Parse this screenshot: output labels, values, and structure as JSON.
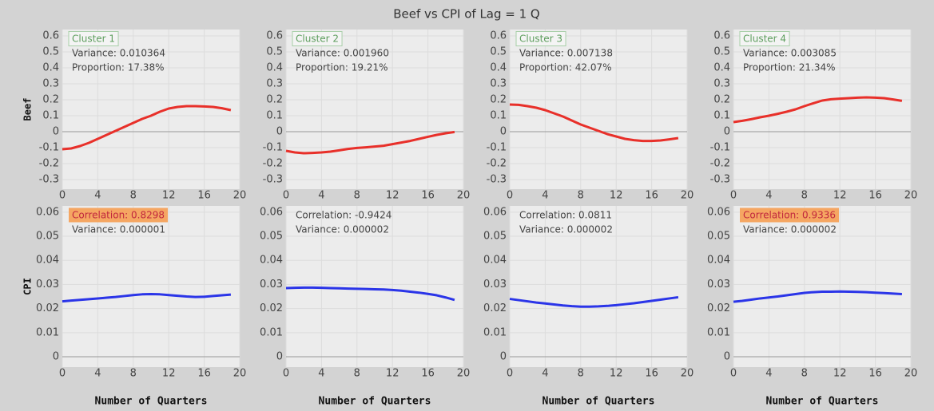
{
  "title": "Beef vs CPI of Lag = 1 Q",
  "chart_data": [
    {
      "type": "line",
      "ylabel": "Beef",
      "x": [
        0,
        1,
        2,
        3,
        4,
        5,
        6,
        7,
        8,
        9,
        10,
        11,
        12,
        13,
        14,
        15,
        16,
        17,
        18,
        19
      ],
      "xlim": [
        0,
        20
      ],
      "xticks": [
        0,
        4,
        8,
        12,
        16,
        20
      ],
      "ylim": [
        -0.36,
        0.64
      ],
      "yticks": [
        -0.3,
        -0.2,
        -0.1,
        0,
        0.1,
        0.2,
        0.3,
        0.4,
        0.5,
        0.6
      ],
      "grid": true,
      "annotations": [
        {
          "text": "Cluster 1",
          "boxed": true
        },
        {
          "text": "Variance: 0.010364"
        },
        {
          "text": "Proportion: 17.38%"
        }
      ],
      "series": [
        {
          "color": "#e8302a",
          "values": [
            -0.11,
            -0.105,
            -0.09,
            -0.07,
            -0.045,
            -0.02,
            0.005,
            0.03,
            0.055,
            0.08,
            0.1,
            0.125,
            0.145,
            0.155,
            0.16,
            0.16,
            0.158,
            0.155,
            0.147,
            0.135
          ]
        }
      ]
    },
    {
      "type": "line",
      "x": [
        0,
        1,
        2,
        3,
        4,
        5,
        6,
        7,
        8,
        9,
        10,
        11,
        12,
        13,
        14,
        15,
        16,
        17,
        18,
        19
      ],
      "xlim": [
        0,
        20
      ],
      "xticks": [
        0,
        4,
        8,
        12,
        16,
        20
      ],
      "ylim": [
        -0.36,
        0.64
      ],
      "yticks": [
        -0.3,
        -0.2,
        -0.1,
        0,
        0.1,
        0.2,
        0.3,
        0.4,
        0.5,
        0.6
      ],
      "grid": true,
      "annotations": [
        {
          "text": "Cluster 2",
          "boxed": true
        },
        {
          "text": "Variance: 0.001960"
        },
        {
          "text": "Proportion: 19.21%"
        }
      ],
      "series": [
        {
          "color": "#e8302a",
          "values": [
            -0.12,
            -0.13,
            -0.135,
            -0.133,
            -0.13,
            -0.125,
            -0.117,
            -0.108,
            -0.102,
            -0.098,
            -0.093,
            -0.088,
            -0.078,
            -0.068,
            -0.058,
            -0.045,
            -0.032,
            -0.02,
            -0.01,
            -0.002
          ]
        }
      ]
    },
    {
      "type": "line",
      "x": [
        0,
        1,
        2,
        3,
        4,
        5,
        6,
        7,
        8,
        9,
        10,
        11,
        12,
        13,
        14,
        15,
        16,
        17,
        18,
        19
      ],
      "xlim": [
        0,
        20
      ],
      "xticks": [
        0,
        4,
        8,
        12,
        16,
        20
      ],
      "ylim": [
        -0.36,
        0.64
      ],
      "yticks": [
        -0.3,
        -0.2,
        -0.1,
        0,
        0.1,
        0.2,
        0.3,
        0.4,
        0.5,
        0.6
      ],
      "grid": true,
      "annotations": [
        {
          "text": "Cluster 3",
          "boxed": true
        },
        {
          "text": "Variance: 0.007138"
        },
        {
          "text": "Proportion: 42.07%"
        }
      ],
      "series": [
        {
          "color": "#e8302a",
          "values": [
            0.17,
            0.168,
            0.16,
            0.15,
            0.135,
            0.115,
            0.095,
            0.07,
            0.045,
            0.025,
            0.005,
            -0.015,
            -0.03,
            -0.045,
            -0.053,
            -0.058,
            -0.058,
            -0.055,
            -0.048,
            -0.04
          ]
        }
      ]
    },
    {
      "type": "line",
      "x": [
        0,
        1,
        2,
        3,
        4,
        5,
        6,
        7,
        8,
        9,
        10,
        11,
        12,
        13,
        14,
        15,
        16,
        17,
        18,
        19
      ],
      "xlim": [
        0,
        20
      ],
      "xticks": [
        0,
        4,
        8,
        12,
        16,
        20
      ],
      "ylim": [
        -0.36,
        0.64
      ],
      "yticks": [
        -0.3,
        -0.2,
        -0.1,
        0,
        0.1,
        0.2,
        0.3,
        0.4,
        0.5,
        0.6
      ],
      "grid": true,
      "annotations": [
        {
          "text": "Cluster 4",
          "boxed": true
        },
        {
          "text": "Variance: 0.003085"
        },
        {
          "text": "Proportion: 21.34%"
        }
      ],
      "series": [
        {
          "color": "#e8302a",
          "values": [
            0.06,
            0.068,
            0.078,
            0.09,
            0.1,
            0.112,
            0.125,
            0.14,
            0.16,
            0.178,
            0.195,
            0.203,
            0.207,
            0.21,
            0.213,
            0.215,
            0.213,
            0.21,
            0.202,
            0.193
          ]
        }
      ]
    },
    {
      "type": "line",
      "ylabel": "CPI",
      "xlabel": "Number of Quarters",
      "x": [
        0,
        1,
        2,
        3,
        4,
        5,
        6,
        7,
        8,
        9,
        10,
        11,
        12,
        13,
        14,
        15,
        16,
        17,
        18,
        19
      ],
      "xlim": [
        0,
        20
      ],
      "xticks": [
        0,
        4,
        8,
        12,
        16,
        20
      ],
      "ylim": [
        -0.0043,
        0.0626
      ],
      "yticks": [
        0,
        0.01,
        0.02,
        0.03,
        0.04,
        0.05,
        0.06
      ],
      "grid": true,
      "annotations": [
        {
          "text": "Correlation: 0.8298",
          "highlight": true
        },
        {
          "text": "Variance: 0.000001"
        }
      ],
      "series": [
        {
          "color": "#2b35e8",
          "values": [
            0.023,
            0.0233,
            0.0236,
            0.0239,
            0.0242,
            0.0245,
            0.0248,
            0.0252,
            0.0256,
            0.0259,
            0.026,
            0.0259,
            0.0256,
            0.0253,
            0.025,
            0.0248,
            0.0249,
            0.0252,
            0.0255,
            0.0258
          ]
        }
      ]
    },
    {
      "type": "line",
      "xlabel": "Number of Quarters",
      "x": [
        0,
        1,
        2,
        3,
        4,
        5,
        6,
        7,
        8,
        9,
        10,
        11,
        12,
        13,
        14,
        15,
        16,
        17,
        18,
        19
      ],
      "xlim": [
        0,
        20
      ],
      "xticks": [
        0,
        4,
        8,
        12,
        16,
        20
      ],
      "ylim": [
        -0.0043,
        0.0626
      ],
      "yticks": [
        0,
        0.01,
        0.02,
        0.03,
        0.04,
        0.05,
        0.06
      ],
      "grid": true,
      "annotations": [
        {
          "text": "Correlation: -0.9424"
        },
        {
          "text": "Variance: 0.000002"
        }
      ],
      "series": [
        {
          "color": "#2b35e8",
          "values": [
            0.0285,
            0.0286,
            0.0287,
            0.0287,
            0.0286,
            0.0285,
            0.0284,
            0.0283,
            0.0282,
            0.0281,
            0.028,
            0.0279,
            0.0277,
            0.0274,
            0.027,
            0.0266,
            0.0261,
            0.0255,
            0.0246,
            0.0236
          ]
        }
      ]
    },
    {
      "type": "line",
      "xlabel": "Number of Quarters",
      "x": [
        0,
        1,
        2,
        3,
        4,
        5,
        6,
        7,
        8,
        9,
        10,
        11,
        12,
        13,
        14,
        15,
        16,
        17,
        18,
        19
      ],
      "xlim": [
        0,
        20
      ],
      "xticks": [
        0,
        4,
        8,
        12,
        16,
        20
      ],
      "ylim": [
        -0.0043,
        0.0626
      ],
      "yticks": [
        0,
        0.01,
        0.02,
        0.03,
        0.04,
        0.05,
        0.06
      ],
      "grid": true,
      "annotations": [
        {
          "text": "Correlation: 0.0811"
        },
        {
          "text": "Variance: 0.000002"
        }
      ],
      "series": [
        {
          "color": "#2b35e8",
          "values": [
            0.024,
            0.0235,
            0.023,
            0.0225,
            0.0221,
            0.0217,
            0.0213,
            0.021,
            0.0208,
            0.0208,
            0.0209,
            0.0211,
            0.0214,
            0.0218,
            0.0222,
            0.0227,
            0.0232,
            0.0237,
            0.0242,
            0.0247
          ]
        }
      ]
    },
    {
      "type": "line",
      "xlabel": "Number of Quarters",
      "x": [
        0,
        1,
        2,
        3,
        4,
        5,
        6,
        7,
        8,
        9,
        10,
        11,
        12,
        13,
        14,
        15,
        16,
        17,
        18,
        19
      ],
      "xlim": [
        0,
        20
      ],
      "xticks": [
        0,
        4,
        8,
        12,
        16,
        20
      ],
      "ylim": [
        -0.0043,
        0.0626
      ],
      "yticks": [
        0,
        0.01,
        0.02,
        0.03,
        0.04,
        0.05,
        0.06
      ],
      "grid": true,
      "annotations": [
        {
          "text": "Correlation: 0.9336",
          "highlight": true
        },
        {
          "text": "Variance: 0.000002"
        }
      ],
      "series": [
        {
          "color": "#2b35e8",
          "values": [
            0.0228,
            0.0232,
            0.0237,
            0.0242,
            0.0246,
            0.025,
            0.0255,
            0.026,
            0.0265,
            0.0268,
            0.027,
            0.027,
            0.0271,
            0.027,
            0.0269,
            0.0268,
            0.0266,
            0.0264,
            0.0262,
            0.026
          ]
        }
      ]
    }
  ]
}
